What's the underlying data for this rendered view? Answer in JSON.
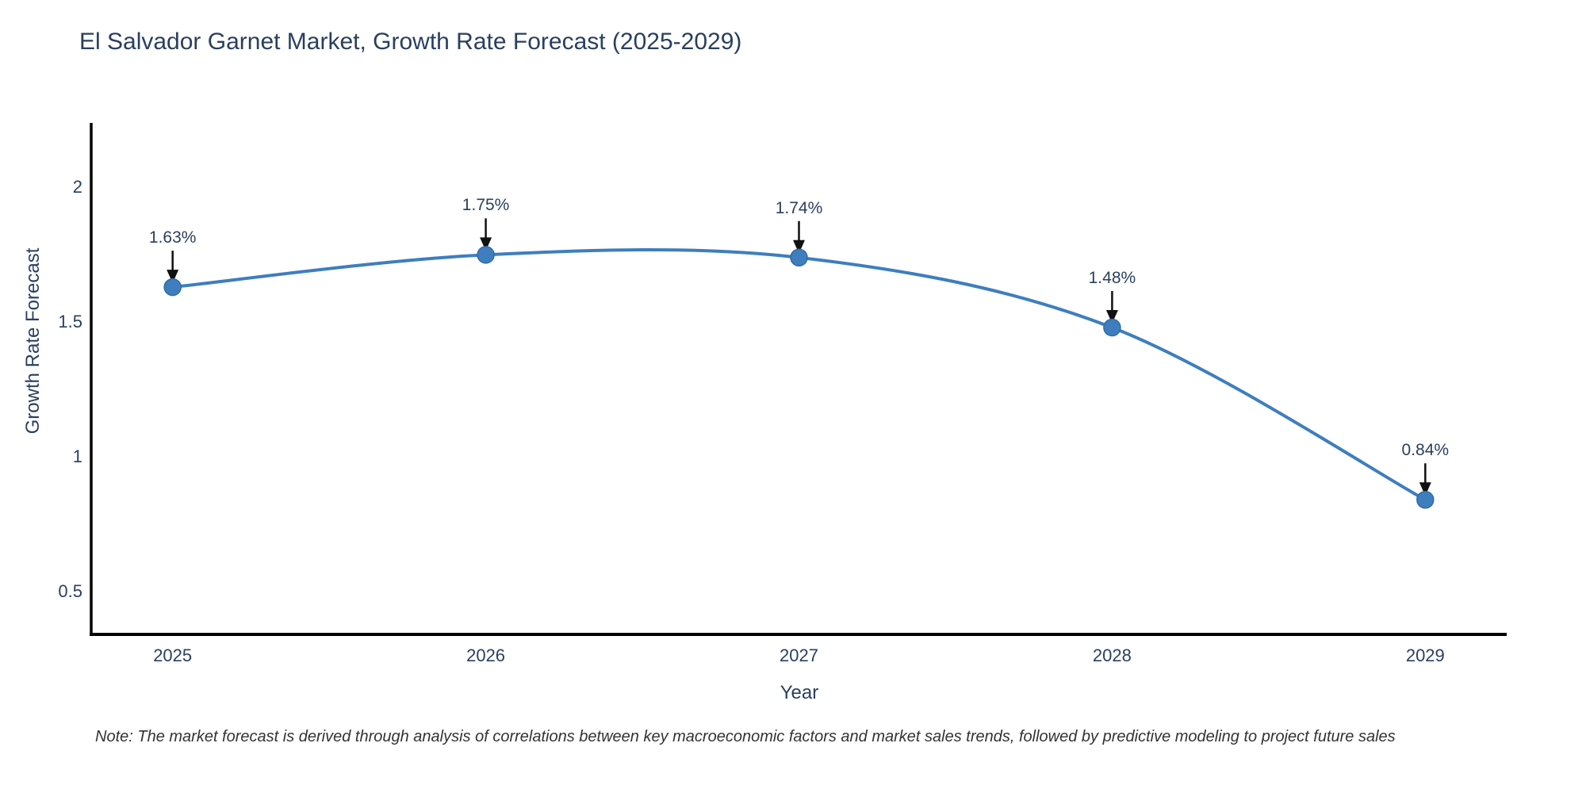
{
  "title": "El Salvador Garnet Market, Growth Rate Forecast (2025-2029)",
  "note": "Note: The market forecast is derived through analysis of correlations between key macroeconomic factors and market sales trends, followed by predictive modeling to project future sales",
  "chart_data": {
    "type": "line",
    "title": "El Salvador Garnet Market, Growth Rate Forecast (2025-2029)",
    "xlabel": "Year",
    "ylabel": "Growth Rate Forecast",
    "x": [
      2025,
      2026,
      2027,
      2028,
      2029
    ],
    "x_tick_labels": [
      "2025",
      "2026",
      "2027",
      "2028",
      "2029"
    ],
    "series": [
      {
        "name": "Growth Rate Forecast",
        "values": [
          1.63,
          1.75,
          1.74,
          1.48,
          0.84
        ]
      }
    ],
    "point_labels": [
      "1.63%",
      "1.75%",
      "1.74%",
      "1.48%",
      "0.84%"
    ],
    "y_ticks": [
      0.5,
      1,
      1.5,
      2
    ],
    "y_tick_labels": [
      "0.5",
      "1",
      "1.5",
      "2"
    ],
    "ylim": [
      0.34,
      2.24
    ],
    "xlim": [
      2024.74,
      2029.26
    ],
    "grid": false,
    "legend_position": "none",
    "annotation_style": "arrow-down-to-point",
    "colors": {
      "line": "#3E7EBE",
      "marker": "#3E7EBE",
      "marker_edge": "#2E6CA8",
      "arrow": "#111111",
      "text": "#2a3f5f",
      "axis_line": "#000000",
      "note_text": "#333333"
    }
  }
}
